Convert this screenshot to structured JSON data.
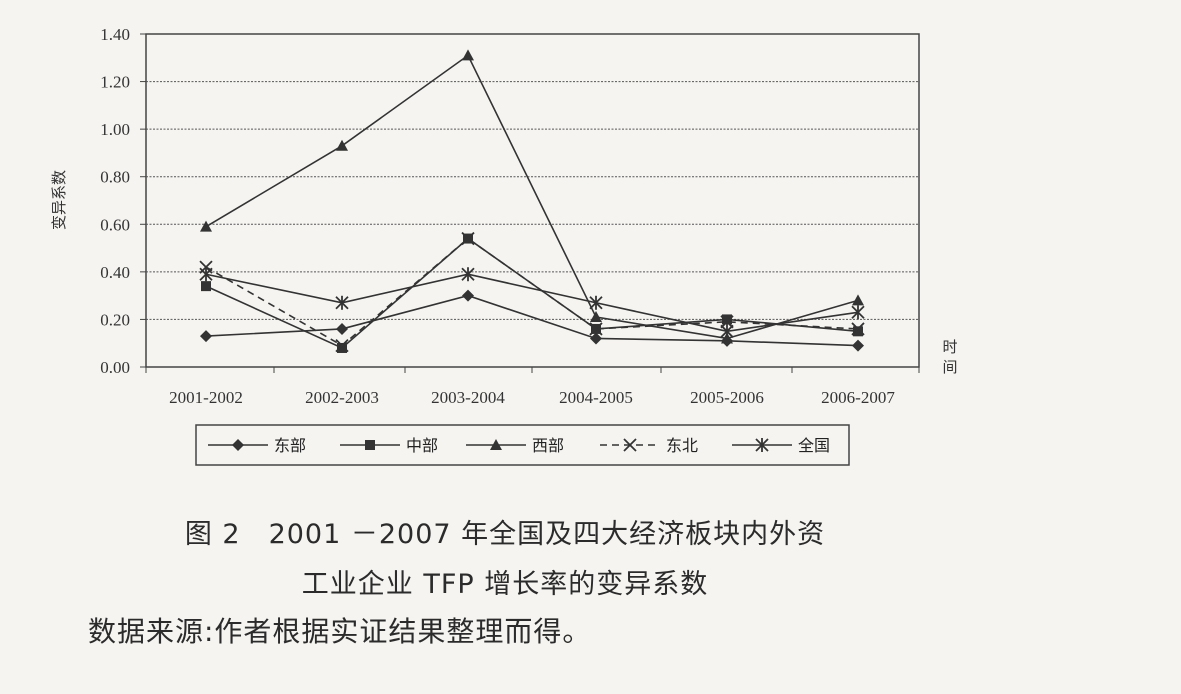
{
  "chart_data": {
    "type": "line",
    "title": "图 2　2001 －2007 年全国及四大经济板块内外资工业企业 TFP 增长率的变异系数",
    "caption_line1": "图 2　2001 －2007 年全国及四大经济板块内外资",
    "caption_line2": "工业企业 TFP 增长率的变异系数",
    "xlabel": "时间",
    "ylabel": "变异系数",
    "categories": [
      "2001-2002",
      "2002-2003",
      "2003-2004",
      "2004-2005",
      "2005-2006",
      "2006-2007"
    ],
    "ylim": [
      0,
      1.4
    ],
    "yticks": [
      "0.00",
      "0.20",
      "0.40",
      "0.60",
      "0.80",
      "1.00",
      "1.20",
      "1.40"
    ],
    "grid": true,
    "legend_position": "bottom",
    "series": [
      {
        "name": "东部",
        "values": [
          0.13,
          0.16,
          0.3,
          0.12,
          0.11,
          0.09
        ],
        "marker": "diamond",
        "dash": "solid"
      },
      {
        "name": "中部",
        "values": [
          0.34,
          0.08,
          0.54,
          0.16,
          0.2,
          0.15
        ],
        "marker": "square",
        "dash": "solid"
      },
      {
        "name": "西部",
        "values": [
          0.59,
          0.93,
          1.31,
          0.21,
          0.12,
          0.28
        ],
        "marker": "triangle",
        "dash": "solid"
      },
      {
        "name": "东北",
        "values": [
          0.42,
          0.09,
          0.54,
          0.16,
          0.19,
          0.16
        ],
        "marker": "x",
        "dash": "dashed"
      },
      {
        "name": "全国",
        "values": [
          0.39,
          0.27,
          0.39,
          0.27,
          0.15,
          0.23
        ],
        "marker": "asterisk",
        "dash": "solid"
      }
    ]
  },
  "source_note": "数据来源:作者根据实证结果整理而得。",
  "colors": {
    "line": "#333333",
    "grid": "#555555",
    "background": "#f5f4f1"
  }
}
